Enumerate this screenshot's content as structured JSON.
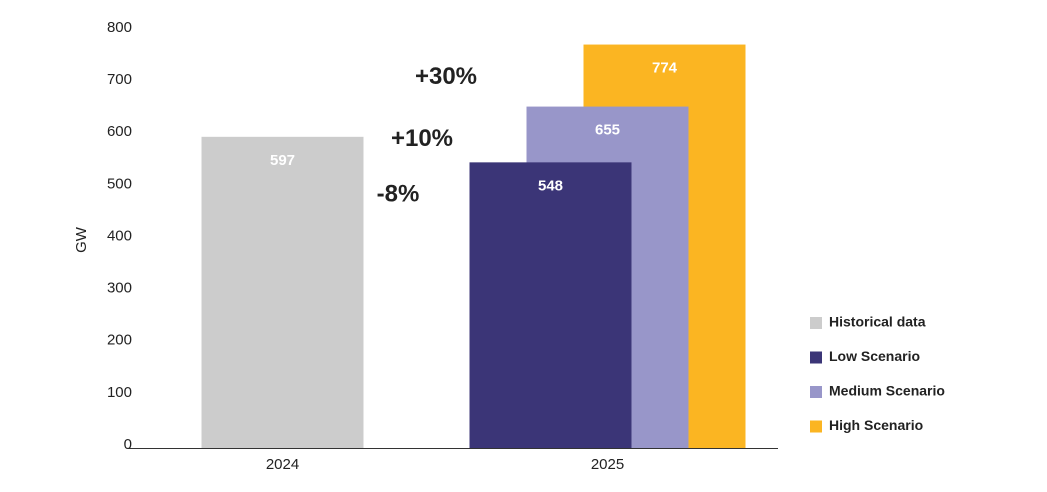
{
  "chart_data": {
    "type": "bar",
    "y_label": "GW",
    "categories": [
      "2024",
      "2025"
    ],
    "series": [
      {
        "name": "Historical data",
        "color": "#cccccc",
        "values": [
          597,
          null
        ]
      },
      {
        "name": "Low Scenario",
        "color": "#3b3577",
        "values": [
          null,
          548
        ]
      },
      {
        "name": "Medium Scenario",
        "color": "#9896c9",
        "values": [
          null,
          655
        ]
      },
      {
        "name": "High Scenario",
        "color": "#fbb522",
        "values": [
          null,
          774
        ]
      }
    ],
    "annotations": [
      "-8%",
      "+10%",
      "+30%"
    ],
    "ylim": [
      0,
      800
    ],
    "yticks": [
      0,
      100,
      200,
      300,
      400,
      500,
      600,
      700,
      800
    ],
    "grid": false,
    "legend": "right"
  }
}
